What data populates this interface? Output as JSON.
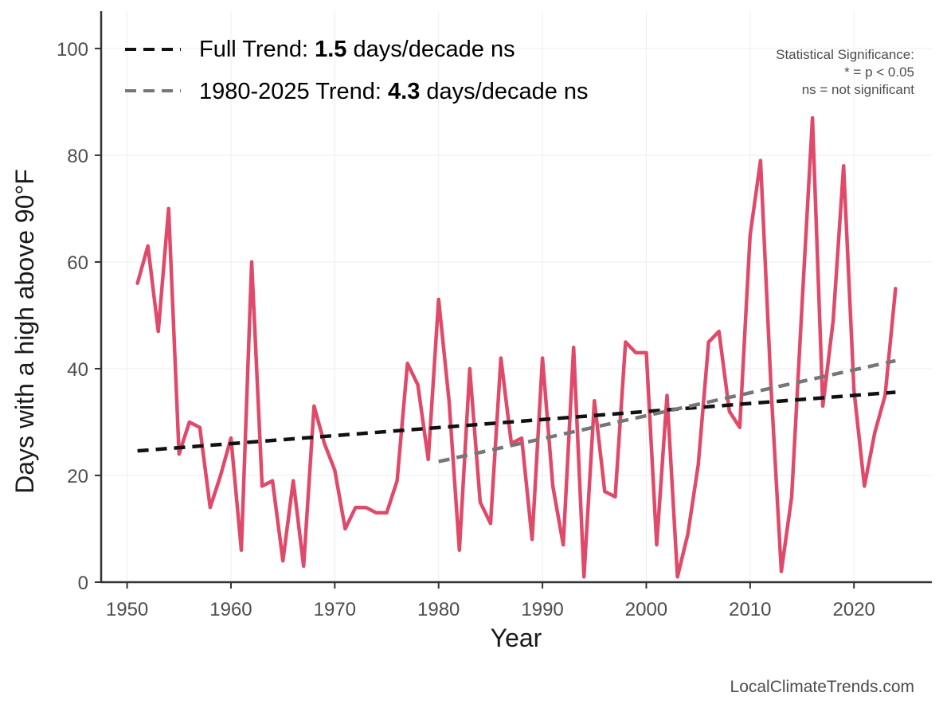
{
  "chart_data": {
    "type": "line",
    "xlabel": "Year",
    "ylabel": "Days with a high above 90°F",
    "xlim": [
      1947.5,
      2027.5
    ],
    "ylim": [
      0,
      107
    ],
    "x_ticks": [
      1950,
      1960,
      1970,
      1980,
      1990,
      2000,
      2010,
      2020
    ],
    "y_ticks": [
      0,
      20,
      40,
      60,
      80,
      100
    ],
    "grid": true,
    "colors": {
      "series": "#e04a6a",
      "full_trend": "#111111",
      "recent_trend": "#777777",
      "axis": "#333333",
      "grid": "#eeeeee"
    },
    "series": [
      {
        "name": "Days with a high above 90°F",
        "x": [
          1951,
          1952,
          1953,
          1954,
          1955,
          1956,
          1957,
          1958,
          1959,
          1960,
          1961,
          1962,
          1963,
          1964,
          1965,
          1966,
          1967,
          1968,
          1969,
          1970,
          1971,
          1972,
          1973,
          1974,
          1975,
          1976,
          1977,
          1978,
          1979,
          1980,
          1981,
          1982,
          1983,
          1984,
          1985,
          1986,
          1987,
          1988,
          1989,
          1990,
          1991,
          1992,
          1993,
          1994,
          1995,
          1996,
          1997,
          1998,
          1999,
          2000,
          2001,
          2002,
          2003,
          2004,
          2005,
          2006,
          2007,
          2008,
          2009,
          2010,
          2011,
          2012,
          2013,
          2014,
          2015,
          2016,
          2017,
          2018,
          2019,
          2020,
          2021,
          2022,
          2023,
          2024
        ],
        "values": [
          56,
          63,
          47,
          70,
          24,
          30,
          29,
          14,
          20,
          27,
          6,
          60,
          18,
          19,
          4,
          19,
          3,
          33,
          26,
          21,
          10,
          14,
          14,
          13,
          13,
          19,
          41,
          37,
          23,
          53,
          34,
          6,
          40,
          15,
          11,
          42,
          26,
          27,
          8,
          42,
          18,
          7,
          44,
          1,
          34,
          17,
          16,
          45,
          43,
          43,
          7,
          35,
          1,
          9,
          22,
          45,
          47,
          32,
          29,
          65,
          79,
          37,
          2,
          16,
          52,
          87,
          33,
          49,
          78,
          36,
          18,
          28,
          35,
          55
        ]
      }
    ],
    "trend_lines": [
      {
        "name": "full",
        "x": [
          1951,
          2024
        ],
        "y": [
          24.6,
          35.6
        ]
      },
      {
        "name": "recent",
        "x": [
          1980,
          2024
        ],
        "y": [
          22.6,
          41.5
        ]
      }
    ],
    "legend": {
      "position": "top-left",
      "entries": [
        {
          "prefix": "Full Trend: ",
          "value": "1.5",
          "suffix": " days/decade ns"
        },
        {
          "prefix": "1980-2025 Trend: ",
          "value": "4.3",
          "suffix": " days/decade ns"
        }
      ]
    },
    "significance_note": [
      "Statistical Significance:",
      "* = p < 0.05",
      "ns = not significant"
    ],
    "credit": "LocalClimateTrends.com"
  }
}
